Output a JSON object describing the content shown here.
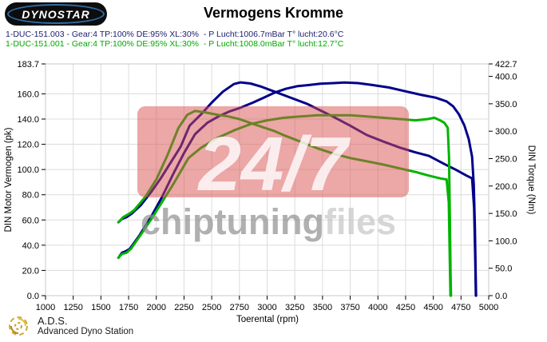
{
  "header": {
    "logo_text": "DYNOSTAR",
    "title": "Vermogens Kromme"
  },
  "legend": [
    {
      "label": "1-DUC-151.003 - Gear:4 TP:100% DE:95% XL:30%  - P Lucht:1006.7mBar T° lucht:20.6°C",
      "color": "#1c1c6e"
    },
    {
      "label": "1-DUC-151.001 - Gear:4 TP:100% DE:95% XL:30%  - P Lucht:1008.0mBar T° lucht:12.7°C",
      "color": "#00a800"
    }
  ],
  "watermark": {
    "big": "24/7",
    "sub_bold": "chiptuning",
    "sub_light": "files",
    "box_color": "#D94F4F",
    "big_color": "#FFFFFF",
    "sub_bold_color": "#8f8f8f",
    "sub_light_color": "#c6c6c6"
  },
  "footer": {
    "abbr": "A.D.S.",
    "name": "Advanced Dyno Station",
    "icon_color": "#C9A227"
  },
  "chart_data": {
    "type": "line",
    "title": "Vermogens Kromme",
    "xlabel": "Toerental (rpm)",
    "ylabel_left": "DIN Motor Vermogen (pk)",
    "ylabel_right": "DIN Torque (Nm)",
    "xlim": [
      1000,
      5000
    ],
    "ylim_left": [
      0,
      183.7
    ],
    "ylim_right": [
      0,
      422.7
    ],
    "grid": true,
    "x_ticks": [
      1000,
      1250,
      1500,
      1750,
      2000,
      2250,
      2500,
      2750,
      3000,
      3250,
      3500,
      3750,
      4000,
      4250,
      4500,
      4750,
      5000
    ],
    "left_ticks": [
      0,
      20,
      40,
      60,
      80,
      100,
      120,
      140,
      160,
      183.7
    ],
    "right_ticks": [
      0,
      50,
      100,
      150,
      200,
      250,
      300,
      350,
      400,
      422.7
    ],
    "series": [
      {
        "name": "torque-run-003",
        "legend": "1-DUC-151.003",
        "axis": "right",
        "unit": "Nm",
        "color": "#00008B",
        "points": [
          [
            1658,
            134
          ],
          [
            1690,
            140
          ],
          [
            1730,
            143
          ],
          [
            1780,
            150
          ],
          [
            1860,
            165
          ],
          [
            1950,
            188
          ],
          [
            2040,
            214
          ],
          [
            2130,
            243
          ],
          [
            2220,
            272
          ],
          [
            2300,
            310
          ],
          [
            2400,
            330
          ],
          [
            2500,
            352
          ],
          [
            2600,
            372
          ],
          [
            2700,
            386
          ],
          [
            2760,
            389
          ],
          [
            2850,
            387
          ],
          [
            2950,
            381
          ],
          [
            3070,
            372
          ],
          [
            3200,
            362
          ],
          [
            3360,
            350
          ],
          [
            3480,
            338
          ],
          [
            3600,
            326
          ],
          [
            3750,
            310
          ],
          [
            3900,
            293
          ],
          [
            4050,
            281
          ],
          [
            4200,
            270
          ],
          [
            4330,
            262
          ],
          [
            4460,
            255
          ],
          [
            4600,
            240
          ],
          [
            4700,
            230
          ],
          [
            4800,
            219
          ],
          [
            4850,
            214
          ],
          [
            4868,
            160
          ],
          [
            4878,
            70
          ],
          [
            4884,
            0
          ]
        ]
      },
      {
        "name": "power-run-003",
        "legend": "1-DUC-151.003",
        "axis": "left",
        "unit": "pk",
        "color": "#00008B",
        "points": [
          [
            1658,
            30
          ],
          [
            1690,
            34
          ],
          [
            1720,
            35
          ],
          [
            1760,
            37
          ],
          [
            1850,
            48
          ],
          [
            1950,
            62
          ],
          [
            2050,
            78
          ],
          [
            2150,
            96
          ],
          [
            2250,
            113
          ],
          [
            2350,
            128
          ],
          [
            2460,
            137
          ],
          [
            2560,
            142
          ],
          [
            2660,
            146
          ],
          [
            2760,
            149
          ],
          [
            2870,
            153
          ],
          [
            2970,
            157
          ],
          [
            3070,
            161
          ],
          [
            3170,
            164
          ],
          [
            3270,
            166
          ],
          [
            3380,
            167
          ],
          [
            3480,
            168
          ],
          [
            3600,
            168.5
          ],
          [
            3700,
            169
          ],
          [
            3820,
            168.5
          ],
          [
            3950,
            167
          ],
          [
            4100,
            165
          ],
          [
            4250,
            162
          ],
          [
            4400,
            159
          ],
          [
            4520,
            157
          ],
          [
            4620,
            154
          ],
          [
            4680,
            150
          ],
          [
            4730,
            144
          ],
          [
            4780,
            135
          ],
          [
            4820,
            124
          ],
          [
            4850,
            110
          ],
          [
            4865,
            88
          ],
          [
            4875,
            55
          ],
          [
            4882,
            20
          ],
          [
            4886,
            0
          ]
        ]
      },
      {
        "name": "torque-run-001",
        "legend": "1-DUC-151.001",
        "axis": "right",
        "unit": "Nm",
        "color": "#00B400",
        "points": [
          [
            1658,
            134
          ],
          [
            1700,
            143
          ],
          [
            1760,
            150
          ],
          [
            1800,
            156
          ],
          [
            1900,
            180
          ],
          [
            2000,
            212
          ],
          [
            2100,
            256
          ],
          [
            2200,
            306
          ],
          [
            2280,
            330
          ],
          [
            2350,
            337
          ],
          [
            2450,
            334
          ],
          [
            2550,
            330
          ],
          [
            2650,
            327
          ],
          [
            2750,
            322
          ],
          [
            2850,
            315
          ],
          [
            2950,
            308
          ],
          [
            3070,
            300
          ],
          [
            3160,
            292
          ],
          [
            3300,
            281
          ],
          [
            3450,
            269
          ],
          [
            3600,
            259
          ],
          [
            3750,
            251
          ],
          [
            3900,
            245
          ],
          [
            4050,
            239
          ],
          [
            4200,
            232
          ],
          [
            4350,
            225
          ],
          [
            4460,
            219
          ],
          [
            4560,
            214
          ],
          [
            4620,
            212
          ],
          [
            4640,
            170
          ],
          [
            4648,
            70
          ],
          [
            4655,
            0
          ]
        ]
      },
      {
        "name": "power-run-001",
        "legend": "1-DUC-151.001",
        "axis": "left",
        "unit": "pk",
        "color": "#00B400",
        "points": [
          [
            1658,
            30
          ],
          [
            1690,
            33
          ],
          [
            1730,
            34
          ],
          [
            1770,
            37
          ],
          [
            1850,
            47
          ],
          [
            1950,
            60
          ],
          [
            2050,
            74
          ],
          [
            2150,
            88
          ],
          [
            2290,
            109
          ],
          [
            2400,
            117
          ],
          [
            2550,
            125
          ],
          [
            2700,
            131
          ],
          [
            2850,
            136
          ],
          [
            3000,
            139
          ],
          [
            3150,
            141
          ],
          [
            3300,
            142
          ],
          [
            3450,
            143
          ],
          [
            3600,
            143
          ],
          [
            3750,
            143
          ],
          [
            3900,
            142
          ],
          [
            4050,
            141
          ],
          [
            4200,
            140
          ],
          [
            4340,
            139
          ],
          [
            4450,
            140
          ],
          [
            4510,
            141
          ],
          [
            4560,
            139
          ],
          [
            4600,
            137
          ],
          [
            4630,
            133
          ],
          [
            4642,
            110
          ],
          [
            4650,
            60
          ],
          [
            4656,
            15
          ],
          [
            4660,
            0
          ]
        ]
      }
    ]
  }
}
